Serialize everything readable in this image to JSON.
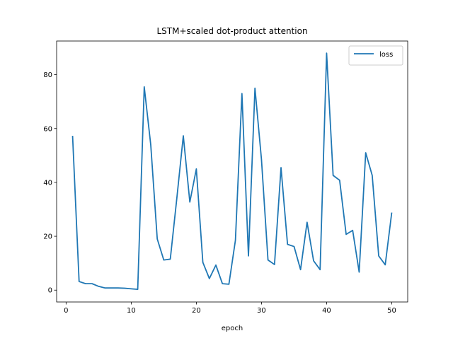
{
  "chart_data": {
    "type": "line",
    "title": "LSTM+scaled dot-product attention",
    "xlabel": "epoch",
    "ylabel": "",
    "xlim": [
      -1.45,
      52.45
    ],
    "ylim": [
      -4.4,
      92.5
    ],
    "xticks": [
      0,
      10,
      20,
      30,
      40,
      50
    ],
    "yticks": [
      0,
      20,
      40,
      60,
      80
    ],
    "legend_position": "upper right",
    "grid": false,
    "series": [
      {
        "name": "loss",
        "color": "#1f77b4",
        "x": [
          1,
          2,
          3,
          4,
          5,
          6,
          7,
          8,
          9,
          10,
          11,
          12,
          13,
          14,
          15,
          16,
          17,
          18,
          19,
          20,
          21,
          22,
          23,
          24,
          25,
          26,
          27,
          28,
          29,
          30,
          31,
          32,
          33,
          34,
          35,
          36,
          37,
          38,
          39,
          40,
          41,
          42,
          43,
          44,
          45,
          46,
          47,
          48,
          49,
          50
        ],
        "values": [
          57.3,
          3.2,
          2.4,
          2.4,
          1.4,
          0.8,
          0.8,
          0.8,
          0.7,
          0.5,
          0.3,
          75.5,
          54.0,
          19.0,
          11.2,
          11.5,
          34.0,
          57.3,
          32.7,
          45.0,
          10.3,
          4.3,
          9.3,
          2.4,
          2.2,
          18.5,
          73.0,
          12.7,
          75.0,
          48.5,
          11.2,
          9.5,
          45.5,
          17.0,
          16.2,
          7.6,
          25.2,
          10.9,
          7.6,
          88.0,
          42.6,
          40.8,
          20.7,
          22.2,
          6.7,
          51.0,
          42.6,
          12.7,
          9.4,
          28.8
        ]
      }
    ]
  }
}
